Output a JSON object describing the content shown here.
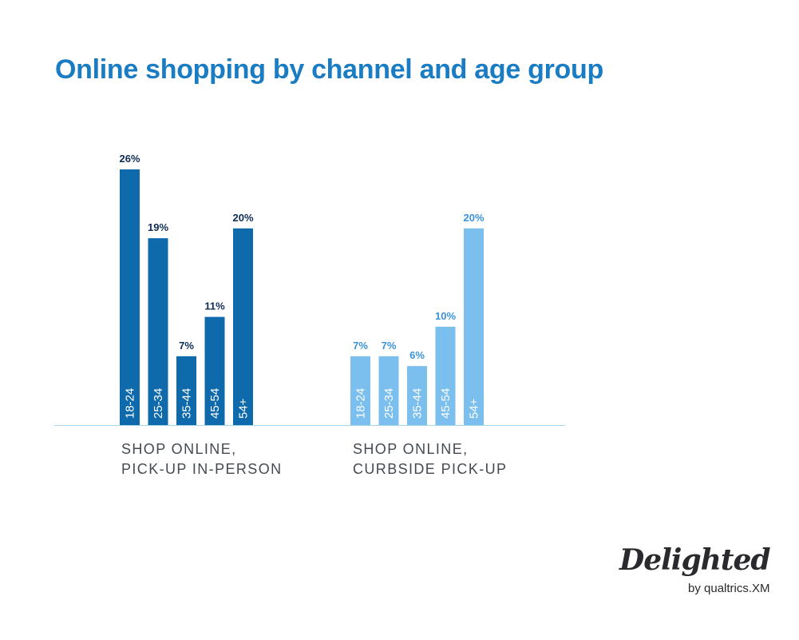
{
  "title": "Online shopping by channel and age group",
  "colors": {
    "title": "#1a7dc4",
    "series_dark": "#0e6aab",
    "series_light": "#7bbfee",
    "label_dark": "#0d2c55",
    "label_light": "#3a93d8",
    "baseline": "#a9d3ef"
  },
  "chart_data": {
    "type": "bar",
    "value_unit": "%",
    "ylim": [
      0,
      26
    ],
    "grid": false,
    "legend": "none",
    "groups": [
      {
        "label_lines": [
          "SHOP ONLINE,",
          "PICK-UP IN-PERSON"
        ],
        "categories": [
          "18-24",
          "25-34",
          "35-44",
          "45-54",
          "54+"
        ],
        "values": [
          26,
          19,
          7,
          11,
          20
        ],
        "value_labels": [
          "26%",
          "19%",
          "7%",
          "11%",
          "20%"
        ],
        "color": "#0e6aab",
        "value_label_color": "#0d2c55"
      },
      {
        "label_lines": [
          "SHOP ONLINE,",
          "CURBSIDE PICK-UP"
        ],
        "categories": [
          "18-24",
          "25-34",
          "35-44",
          "45-54",
          "54+"
        ],
        "values": [
          7,
          7,
          6,
          10,
          20
        ],
        "value_labels": [
          "7%",
          "7%",
          "6%",
          "10%",
          "20%"
        ],
        "color": "#7bbfee",
        "value_label_color": "#3a93d8"
      }
    ]
  },
  "logo": {
    "name": "Delighted",
    "byline": "by qualtrics.XM"
  }
}
